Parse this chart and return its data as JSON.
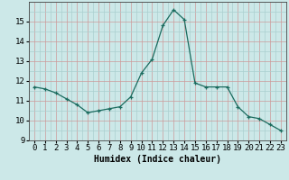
{
  "x": [
    0,
    1,
    2,
    3,
    4,
    5,
    6,
    7,
    8,
    9,
    10,
    11,
    12,
    13,
    14,
    15,
    16,
    17,
    18,
    19,
    20,
    21,
    22,
    23
  ],
  "y": [
    11.7,
    11.6,
    11.4,
    11.1,
    10.8,
    10.4,
    10.5,
    10.6,
    10.7,
    11.2,
    12.4,
    13.1,
    14.8,
    15.6,
    15.1,
    11.9,
    11.7,
    11.7,
    11.7,
    10.7,
    10.2,
    10.1,
    9.8,
    9.5
  ],
  "xlabel": "Humidex (Indice chaleur)",
  "xlim": [
    -0.5,
    23.5
  ],
  "ylim": [
    9,
    16
  ],
  "yticks": [
    9,
    10,
    11,
    12,
    13,
    14,
    15
  ],
  "xticks": [
    0,
    1,
    2,
    3,
    4,
    5,
    6,
    7,
    8,
    9,
    10,
    11,
    12,
    13,
    14,
    15,
    16,
    17,
    18,
    19,
    20,
    21,
    22,
    23
  ],
  "line_color": "#1a6b5e",
  "marker": "+",
  "bg_color": "#cce8e8",
  "grid_minor_color": "#aacfcf",
  "grid_major_color": "#cc9999",
  "xlabel_fontsize": 7,
  "tick_fontsize": 6.5
}
